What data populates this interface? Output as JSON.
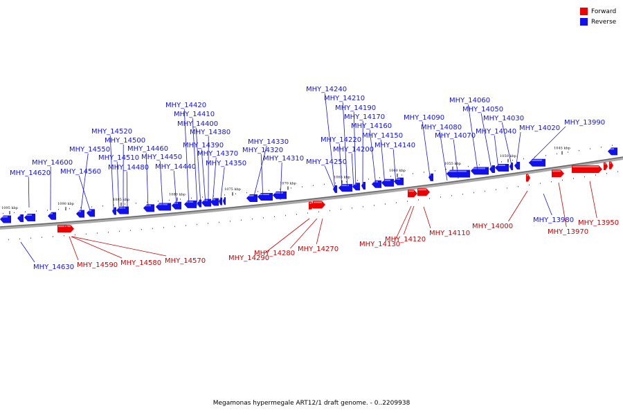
{
  "legend": {
    "forward_label": "Forward",
    "reverse_label": "Reverse",
    "forward_color": "#ee0000",
    "reverse_color": "#1111ee"
  },
  "caption": "Megamonas hypermegale ART12/1 draft genome. - 0..2209938",
  "scale_ticks": [
    "1095 kbp",
    "1090 kbp",
    "1085 kbp",
    "1080 kbp",
    "1075 kbp",
    "1070 kbp",
    "1065 kbp",
    "1060 kbp",
    "1055 kbp",
    "1050 kbp",
    "1045 kbp"
  ],
  "reverse_genes": [
    "MHY_14630",
    "MHY_14620",
    "MHY_14600",
    "MHY_14560",
    "MHY_14550",
    "MHY_14520",
    "MHY_14510",
    "MHY_14500",
    "MHY_14480",
    "MHY_14460",
    "MHY_14450",
    "MHY_14440",
    "MHY_14420",
    "MHY_14410",
    "MHY_14400",
    "MHY_14390",
    "MHY_14380",
    "MHY_14370",
    "MHY_14350",
    "MHY_14330",
    "MHY_14320",
    "MHY_14310",
    "MHY_14250",
    "MHY_14240",
    "MHY_14220",
    "MHY_14210",
    "MHY_14200",
    "MHY_14190",
    "MHY_14170",
    "MHY_14160",
    "MHY_14150",
    "MHY_14140",
    "MHY_14090",
    "MHY_14080",
    "MHY_14070",
    "MHY_14060",
    "MHY_14050",
    "MHY_14040",
    "MHY_14030",
    "MHY_14020",
    "MHY_13990",
    "MHY_13980"
  ],
  "forward_genes": [
    "MHY_14590",
    "MHY_14580",
    "MHY_14570",
    "MHY_14290",
    "MHY_14280",
    "MHY_14270",
    "MHY_14130",
    "MHY_14120",
    "MHY_14110",
    "MHY_14000",
    "MHY_13970",
    "MHY_13950"
  ]
}
